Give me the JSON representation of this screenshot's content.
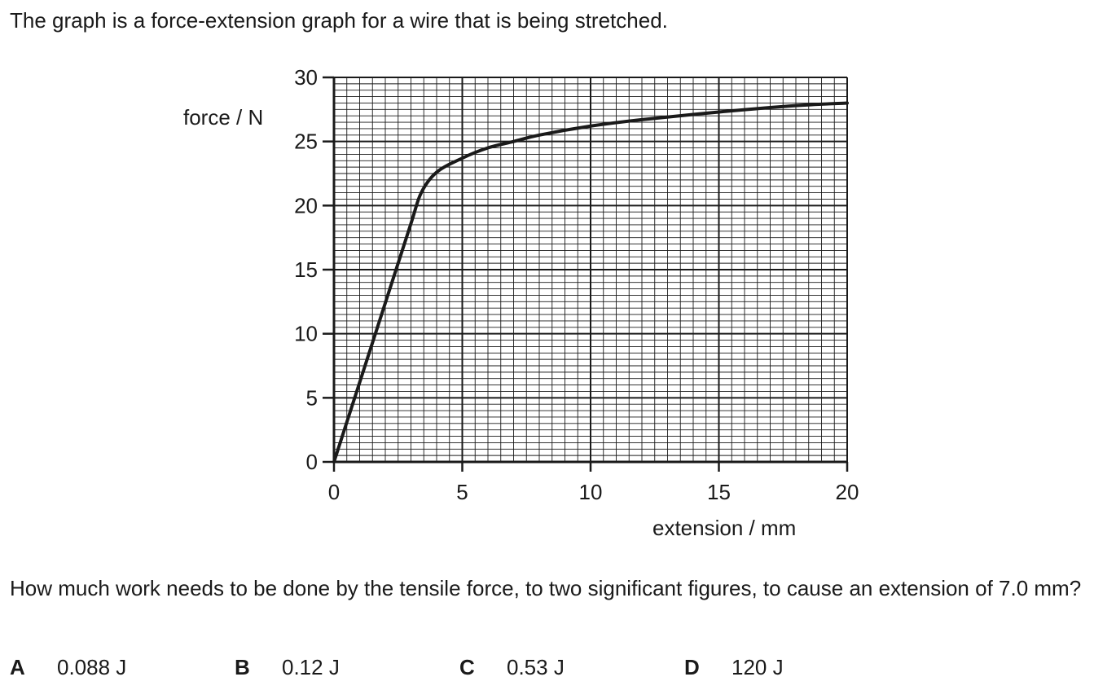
{
  "intro": "The graph is a force-extension graph for a wire that is being stretched.",
  "question": "How much work needs to be done by the tensile force, to two significant figures, to cause an extension of 7.0 mm?",
  "options": [
    {
      "letter": "A",
      "text": "0.088 J"
    },
    {
      "letter": "B",
      "text": "0.12 J"
    },
    {
      "letter": "C",
      "text": "0.53 J"
    },
    {
      "letter": "D",
      "text": "120 J"
    }
  ],
  "colors": {
    "ink": "#1a1a1a",
    "grid": "#1a1a1a"
  },
  "chart_data": {
    "type": "line",
    "title": "",
    "xlabel": "extension / mm",
    "ylabel": "force / N",
    "xlim": [
      0,
      20
    ],
    "ylim": [
      0,
      30
    ],
    "x_ticks": [
      0,
      5,
      10,
      15,
      20
    ],
    "y_ticks": [
      0,
      5,
      10,
      15,
      20,
      25,
      30
    ],
    "grid": true,
    "minor_grid_per_major": 10,
    "series": [
      {
        "x": [
          0,
          1,
          2,
          3,
          3.4,
          4,
          5,
          6,
          7,
          8,
          10,
          12,
          15,
          18,
          20
        ],
        "y": [
          0,
          6.2,
          12.4,
          18.6,
          21.0,
          22.6,
          23.7,
          24.5,
          25.0,
          25.5,
          26.2,
          26.7,
          27.3,
          27.8,
          28.0
        ]
      }
    ]
  }
}
